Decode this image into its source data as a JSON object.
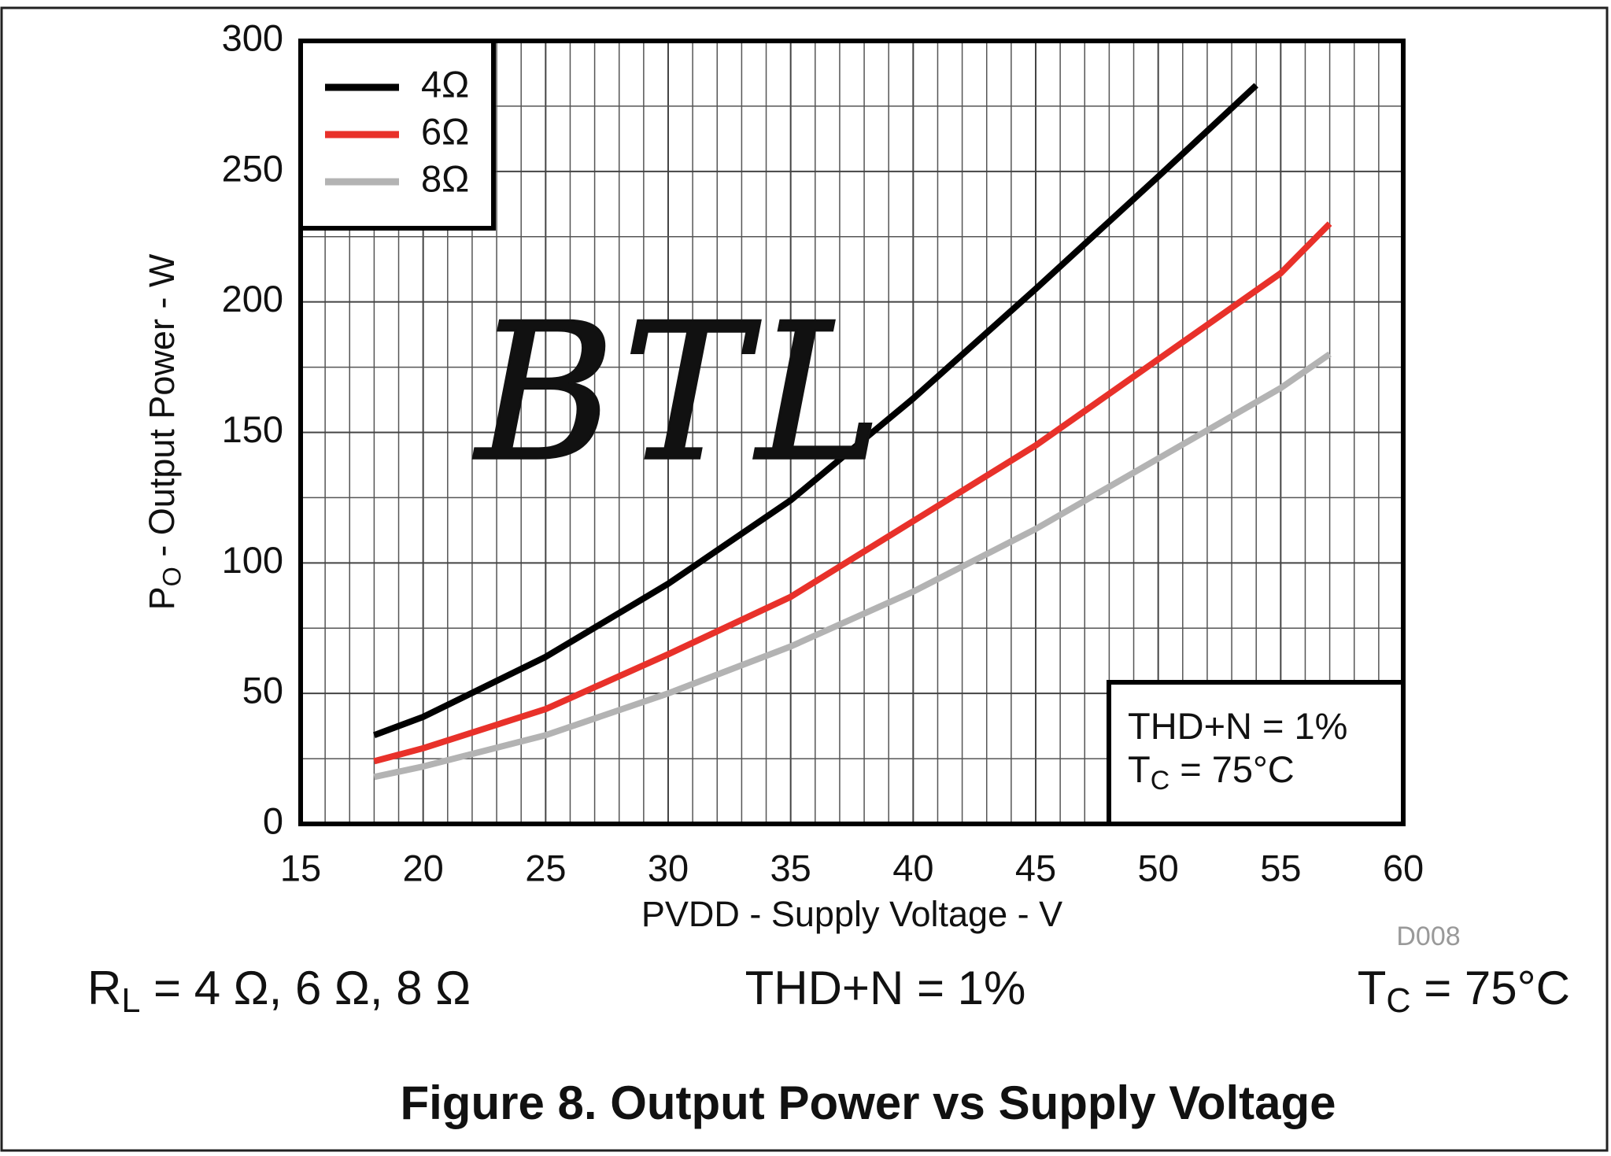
{
  "chart_data": {
    "type": "line",
    "title": "Figure 8. Output Power vs Supply Voltage",
    "x_label": "PVDD - Supply Voltage - V",
    "y_label": {
      "main": "P",
      "sub": "O",
      "rest": " - Output Power - W"
    },
    "code": "D008",
    "handwritten_note": "BTL",
    "conditions": [
      {
        "main": "R",
        "sub": "L",
        "rest": " = 4 Ω, 6 Ω, 8 Ω"
      },
      {
        "main": "THD+N = 1%"
      },
      {
        "main": "T",
        "sub": "C",
        "rest": " = 75°C"
      }
    ],
    "annotation": [
      {
        "main": "THD+N = 1%"
      },
      {
        "main": "T",
        "sub": "C",
        "rest": " = 75°C"
      }
    ],
    "xlim": [
      15,
      60
    ],
    "xticks": [
      15,
      20,
      25,
      30,
      35,
      40,
      45,
      50,
      55,
      60
    ],
    "ylim": [
      0,
      300
    ],
    "yticks": [
      0,
      50,
      100,
      150,
      200,
      250,
      300
    ],
    "grid": true,
    "legend": "upper left",
    "series": [
      {
        "name": "4Ω",
        "color": "#000000",
        "x": [
          18,
          20,
          25,
          30,
          35,
          40,
          45,
          50,
          54
        ],
        "values": [
          34,
          41,
          64,
          92,
          124,
          163,
          205,
          248,
          283
        ]
      },
      {
        "name": "6Ω",
        "color": "#e8312a",
        "x": [
          18,
          20,
          25,
          30,
          35,
          40,
          45,
          50,
          55,
          57
        ],
        "values": [
          24,
          29,
          44,
          65,
          87,
          116,
          145,
          178,
          211,
          230
        ]
      },
      {
        "name": "8Ω",
        "color": "#b3b3b3",
        "x": [
          18,
          20,
          25,
          30,
          35,
          40,
          45,
          50,
          55,
          57
        ],
        "values": [
          18,
          22,
          34,
          50,
          68,
          89,
          113,
          140,
          167,
          180
        ]
      }
    ]
  }
}
